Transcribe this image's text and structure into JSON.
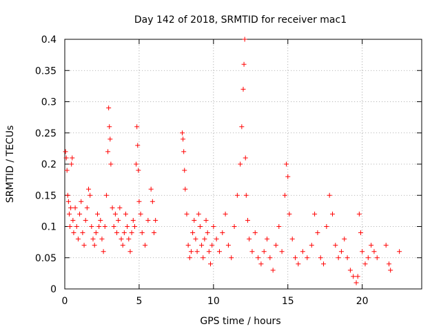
{
  "chart_data": {
    "type": "scatter",
    "title": "Day 142 of 2018, SRMTID for receiver mac1",
    "xlabel": "GPS time / hours",
    "ylabel": "SRMTID / TECUs",
    "xlim": [
      0,
      24
    ],
    "ylim": [
      0,
      0.4
    ],
    "xticks": [
      0,
      5,
      10,
      15,
      20
    ],
    "xtick_labels": [
      "0",
      "5",
      "10",
      "15",
      "20"
    ],
    "yticks": [
      0,
      0.05,
      0.1,
      0.15,
      0.2,
      0.25,
      0.3,
      0.35,
      0.4
    ],
    "ytick_labels": [
      "0",
      "0.05",
      "0.1",
      "0.15",
      "0.2",
      "0.25",
      "0.3",
      "0.35",
      "0.4"
    ],
    "grid": true,
    "legend": "none",
    "marker": "+",
    "series": [
      {
        "name": "SRMTID",
        "color": "#ff0000",
        "points": [
          [
            0.05,
            0.22
          ],
          [
            0.1,
            0.21
          ],
          [
            0.15,
            0.19
          ],
          [
            0.2,
            0.15
          ],
          [
            0.25,
            0.14
          ],
          [
            0.3,
            0.12
          ],
          [
            0.35,
            0.1
          ],
          [
            0.4,
            0.13
          ],
          [
            0.45,
            0.2
          ],
          [
            0.5,
            0.21
          ],
          [
            0.55,
            0.11
          ],
          [
            0.6,
            0.09
          ],
          [
            0.7,
            0.13
          ],
          [
            0.8,
            0.1
          ],
          [
            0.9,
            0.08
          ],
          [
            1.0,
            0.12
          ],
          [
            1.1,
            0.14
          ],
          [
            1.2,
            0.09
          ],
          [
            1.3,
            0.07
          ],
          [
            1.4,
            0.11
          ],
          [
            1.5,
            0.13
          ],
          [
            1.6,
            0.16
          ],
          [
            1.7,
            0.15
          ],
          [
            1.8,
            0.1
          ],
          [
            1.9,
            0.08
          ],
          [
            2.0,
            0.07
          ],
          [
            2.1,
            0.09
          ],
          [
            2.2,
            0.12
          ],
          [
            2.3,
            0.1
          ],
          [
            2.4,
            0.11
          ],
          [
            2.5,
            0.08
          ],
          [
            2.6,
            0.06
          ],
          [
            2.7,
            0.1
          ],
          [
            2.8,
            0.15
          ],
          [
            2.9,
            0.22
          ],
          [
            2.95,
            0.29
          ],
          [
            3.0,
            0.26
          ],
          [
            3.05,
            0.24
          ],
          [
            3.1,
            0.2
          ],
          [
            3.2,
            0.13
          ],
          [
            3.3,
            0.1
          ],
          [
            3.4,
            0.12
          ],
          [
            3.5,
            0.09
          ],
          [
            3.6,
            0.11
          ],
          [
            3.7,
            0.13
          ],
          [
            3.8,
            0.08
          ],
          [
            3.9,
            0.07
          ],
          [
            4.0,
            0.09
          ],
          [
            4.1,
            0.12
          ],
          [
            4.2,
            0.1
          ],
          [
            4.3,
            0.08
          ],
          [
            4.4,
            0.06
          ],
          [
            4.5,
            0.09
          ],
          [
            4.6,
            0.11
          ],
          [
            4.7,
            0.1
          ],
          [
            4.8,
            0.2
          ],
          [
            4.85,
            0.26
          ],
          [
            4.9,
            0.23
          ],
          [
            4.95,
            0.19
          ],
          [
            5.0,
            0.14
          ],
          [
            5.1,
            0.12
          ],
          [
            5.2,
            0.09
          ],
          [
            5.4,
            0.07
          ],
          [
            5.6,
            0.11
          ],
          [
            5.8,
            0.16
          ],
          [
            5.9,
            0.14
          ],
          [
            6.0,
            0.09
          ],
          [
            6.1,
            0.11
          ],
          [
            7.9,
            0.25
          ],
          [
            7.95,
            0.24
          ],
          [
            8.0,
            0.22
          ],
          [
            8.05,
            0.19
          ],
          [
            8.1,
            0.16
          ],
          [
            8.2,
            0.12
          ],
          [
            8.3,
            0.07
          ],
          [
            8.4,
            0.05
          ],
          [
            8.5,
            0.06
          ],
          [
            8.6,
            0.09
          ],
          [
            8.7,
            0.11
          ],
          [
            8.8,
            0.08
          ],
          [
            8.9,
            0.06
          ],
          [
            9.0,
            0.12
          ],
          [
            9.1,
            0.1
          ],
          [
            9.2,
            0.07
          ],
          [
            9.3,
            0.05
          ],
          [
            9.4,
            0.08
          ],
          [
            9.5,
            0.11
          ],
          [
            9.6,
            0.09
          ],
          [
            9.7,
            0.06
          ],
          [
            9.8,
            0.04
          ],
          [
            9.9,
            0.07
          ],
          [
            10.0,
            0.1
          ],
          [
            10.2,
            0.08
          ],
          [
            10.4,
            0.06
          ],
          [
            10.6,
            0.09
          ],
          [
            10.8,
            0.12
          ],
          [
            11.0,
            0.07
          ],
          [
            11.2,
            0.05
          ],
          [
            11.4,
            0.1
          ],
          [
            11.6,
            0.15
          ],
          [
            11.8,
            0.2
          ],
          [
            11.9,
            0.26
          ],
          [
            12.0,
            0.32
          ],
          [
            12.05,
            0.36
          ],
          [
            12.1,
            0.4
          ],
          [
            12.15,
            0.21
          ],
          [
            12.2,
            0.15
          ],
          [
            12.3,
            0.11
          ],
          [
            12.4,
            0.08
          ],
          [
            12.6,
            0.06
          ],
          [
            12.8,
            0.09
          ],
          [
            13.0,
            0.05
          ],
          [
            13.2,
            0.04
          ],
          [
            13.4,
            0.06
          ],
          [
            13.6,
            0.08
          ],
          [
            13.8,
            0.05
          ],
          [
            14.0,
            0.03
          ],
          [
            14.2,
            0.07
          ],
          [
            14.4,
            0.1
          ],
          [
            14.6,
            0.06
          ],
          [
            14.8,
            0.15
          ],
          [
            14.9,
            0.2
          ],
          [
            15.0,
            0.18
          ],
          [
            15.1,
            0.12
          ],
          [
            15.3,
            0.08
          ],
          [
            15.5,
            0.05
          ],
          [
            15.7,
            0.04
          ],
          [
            16.0,
            0.06
          ],
          [
            16.3,
            0.05
          ],
          [
            16.6,
            0.07
          ],
          [
            16.8,
            0.12
          ],
          [
            17.0,
            0.09
          ],
          [
            17.2,
            0.05
          ],
          [
            17.4,
            0.04
          ],
          [
            17.6,
            0.1
          ],
          [
            17.8,
            0.15
          ],
          [
            18.0,
            0.12
          ],
          [
            18.2,
            0.07
          ],
          [
            18.4,
            0.05
          ],
          [
            18.6,
            0.06
          ],
          [
            18.8,
            0.08
          ],
          [
            19.0,
            0.05
          ],
          [
            19.2,
            0.03
          ],
          [
            19.4,
            0.02
          ],
          [
            19.6,
            0.01
          ],
          [
            19.7,
            0.02
          ],
          [
            19.8,
            0.12
          ],
          [
            19.9,
            0.09
          ],
          [
            20.0,
            0.06
          ],
          [
            20.2,
            0.04
          ],
          [
            20.4,
            0.05
          ],
          [
            20.6,
            0.07
          ],
          [
            20.8,
            0.06
          ],
          [
            21.0,
            0.05
          ],
          [
            21.6,
            0.07
          ],
          [
            21.8,
            0.04
          ],
          [
            21.9,
            0.03
          ],
          [
            22.5,
            0.06
          ]
        ]
      }
    ]
  }
}
